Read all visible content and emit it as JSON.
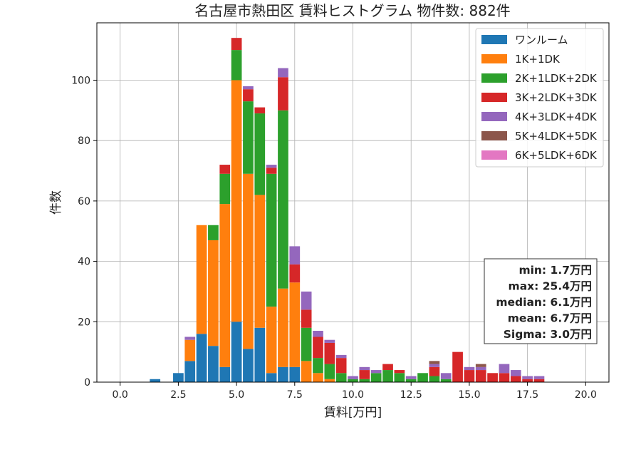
{
  "chart_data": {
    "type": "bar",
    "stacked": true,
    "title": "名古屋市熱田区 賃料ヒストグラム 物件数: 882件",
    "xlabel": "賃料[万円]",
    "ylabel": "件数",
    "xlim": [
      -1.0,
      21.0
    ],
    "ylim": [
      0,
      119
    ],
    "xticks": [
      0.0,
      2.5,
      5.0,
      7.5,
      10.0,
      12.5,
      15.0,
      17.5,
      20.0
    ],
    "xtick_labels": [
      "0.0",
      "2.5",
      "5.0",
      "7.5",
      "10.0",
      "12.5",
      "15.0",
      "17.5",
      "20.0"
    ],
    "yticks": [
      0,
      20,
      40,
      60,
      80,
      100
    ],
    "ytick_labels": [
      "0",
      "20",
      "40",
      "60",
      "80",
      "100"
    ],
    "grid": true,
    "legend_position": "top-right",
    "bin_width": 0.5,
    "x": [
      1.5,
      2.0,
      2.5,
      3.0,
      3.5,
      4.0,
      4.5,
      5.0,
      5.5,
      6.0,
      6.5,
      7.0,
      7.5,
      8.0,
      8.5,
      9.0,
      9.5,
      10.0,
      10.5,
      11.0,
      11.5,
      12.0,
      12.5,
      13.0,
      13.5,
      14.0,
      14.5,
      15.0,
      15.5,
      16.0,
      16.5,
      17.0,
      17.5,
      18.0
    ],
    "series": [
      {
        "name": "ワンルーム",
        "color": "#1f77b4",
        "values": [
          1,
          0,
          3,
          7,
          16,
          12,
          5,
          20,
          11,
          18,
          3,
          5,
          5,
          0,
          0,
          0,
          0,
          0,
          0,
          0,
          0,
          0,
          0,
          0,
          0,
          0,
          0,
          0,
          0,
          0,
          0,
          0,
          0,
          0
        ]
      },
      {
        "name": "1K+1DK",
        "color": "#ff7f0e",
        "values": [
          0,
          0,
          0,
          7,
          36,
          35,
          54,
          80,
          58,
          44,
          22,
          26,
          28,
          7,
          3,
          1,
          0,
          0,
          0,
          0,
          0,
          0,
          0,
          0,
          0,
          0,
          0,
          0,
          0,
          0,
          0,
          0,
          0,
          0
        ]
      },
      {
        "name": "2K+1LDK+2DK",
        "color": "#2ca02c",
        "values": [
          0,
          0,
          0,
          0,
          0,
          5,
          10,
          10,
          24,
          27,
          44,
          59,
          0,
          11,
          5,
          5,
          3,
          1,
          1,
          3,
          4,
          3,
          1,
          3,
          2,
          1,
          0,
          0,
          0,
          0,
          0,
          0,
          0,
          0
        ]
      },
      {
        "name": "3K+2LDK+3DK",
        "color": "#d62728",
        "values": [
          0,
          0,
          0,
          0,
          0,
          0,
          3,
          4,
          4,
          2,
          2,
          11,
          6,
          6,
          7,
          7,
          5,
          0,
          3,
          0,
          2,
          1,
          0,
          0,
          3,
          0,
          10,
          4,
          4,
          3,
          3,
          2,
          1,
          1
        ]
      },
      {
        "name": "4K+3LDK+4DK",
        "color": "#9467bd",
        "values": [
          0,
          0,
          0,
          1,
          0,
          0,
          0,
          0,
          1,
          0,
          1,
          3,
          6,
          6,
          2,
          1,
          1,
          1,
          1,
          1,
          0,
          0,
          1,
          0,
          1,
          2,
          0,
          1,
          1,
          0,
          3,
          2,
          1,
          1
        ]
      },
      {
        "name": "5K+4LDK+5DK",
        "color": "#8c564b",
        "values": [
          0,
          0,
          0,
          0,
          0,
          0,
          0,
          0,
          0,
          0,
          0,
          0,
          0,
          0,
          0,
          0,
          0,
          0,
          0,
          0,
          0,
          0,
          0,
          0,
          1,
          0,
          0,
          0,
          1,
          0,
          0,
          0,
          0,
          0
        ]
      },
      {
        "name": "6K+5LDK+6DK",
        "color": "#e377c2",
        "values": [
          0,
          0,
          0,
          0,
          0,
          0,
          0,
          0,
          0,
          0,
          0,
          0,
          0,
          0,
          0,
          0,
          0,
          0,
          0,
          0,
          0,
          0,
          0,
          0,
          0,
          0,
          0,
          0,
          0,
          0,
          0,
          0,
          0,
          0
        ]
      }
    ],
    "stats": [
      "min: 1.7万円",
      "max: 25.4万円",
      "median: 6.1万円",
      "mean: 6.7万円",
      "Sigma: 3.0万円"
    ]
  }
}
